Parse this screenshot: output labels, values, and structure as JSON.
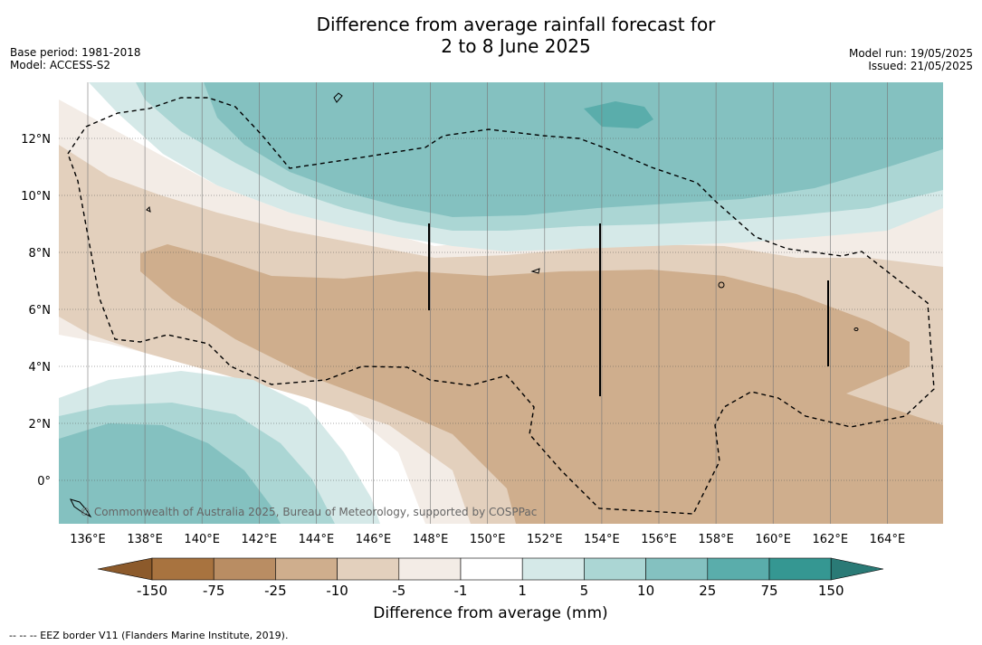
{
  "title_line1": "Difference from average rainfall forecast for",
  "title_line2": "2 to 8 June 2025",
  "base_period": "Base period: 1981-2018",
  "model": "Model: ACCESS-S2",
  "model_run": "Model run: 19/05/2025",
  "issued": "Issued: 21/05/2025",
  "copyright": "© Commonwealth of Australia 2025, Bureau of Meteorology, supported by COSPPac",
  "lon_labels": [
    "136°E",
    "138°E",
    "140°E",
    "142°E",
    "144°E",
    "146°E",
    "148°E",
    "150°E",
    "152°E",
    "154°E",
    "156°E",
    "158°E",
    "160°E",
    "162°E",
    "164°E"
  ],
  "lat_labels": [
    "12°N",
    "10°N",
    "8°N",
    "6°N",
    "4°N",
    "2°N",
    "0°"
  ],
  "legend": {
    "title": "Difference from average (mm)",
    "ticks": [
      "-150",
      "-75",
      "-25",
      "-10",
      "-5",
      "-1",
      "1",
      "5",
      "10",
      "25",
      "75",
      "150"
    ],
    "colors": {
      "lt_minus150": "#8c5a2b",
      "m150_m75": "#a8733f",
      "m75_m25": "#b98d63",
      "m25_m10": "#cfae8d",
      "m10_m5": "#e3d0bd",
      "m5_m1": "#f3ece6",
      "m1_1": "#ffffff",
      "1_5": "#d5e9e8",
      "5_10": "#abd6d4",
      "10_25": "#84c1c0",
      "25_75": "#5aadab",
      "75_150": "#359792",
      "gt_150": "#2a7a76"
    }
  },
  "footer": "--  --  -- EEZ border V11 (Flanders Marine Institute, 2019)."
}
